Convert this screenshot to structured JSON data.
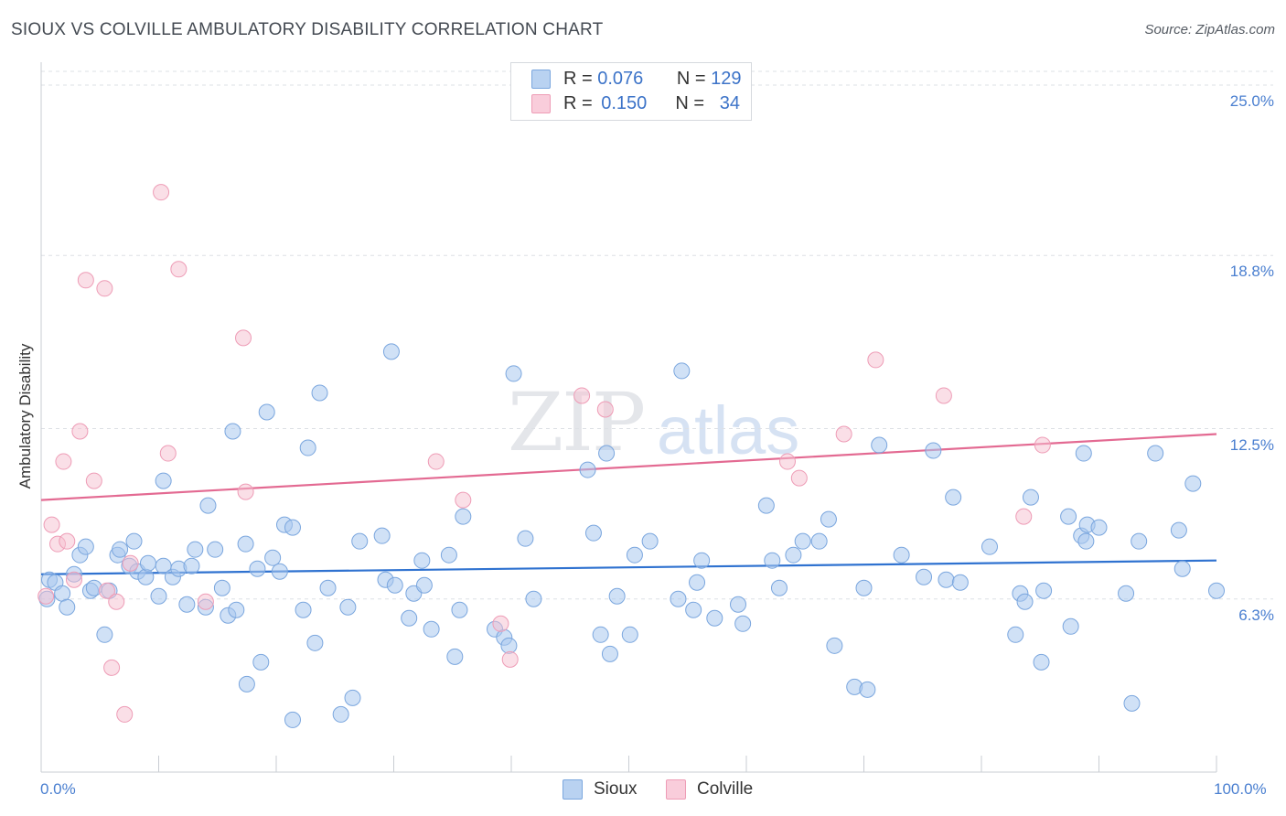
{
  "title": "SIOUX VS COLVILLE AMBULATORY DISABILITY CORRELATION CHART",
  "source": "Source: ZipAtlas.com",
  "watermark": {
    "part1": "ZIP",
    "part2": "atlas"
  },
  "legend_top": {
    "sioux": {
      "r_label": "R =",
      "r_value": "0.076",
      "n_label": "N =",
      "n_value": "129"
    },
    "colville": {
      "r_label": "R =",
      "r_value": "0.150",
      "n_label": "N =",
      "n_value": "34"
    }
  },
  "legend_bottom": {
    "sioux": "Sioux",
    "colville": "Colville"
  },
  "colors": {
    "sioux_fill": "#a9c8ee",
    "sioux_stroke": "#7aa6de",
    "sioux_line": "#2f72d0",
    "colville_fill": "#f6bfd0",
    "colville_stroke": "#ee9cb6",
    "colville_line": "#e36a92",
    "axis_label": "#4a7fd0",
    "grid": "#dde0e5"
  },
  "chart_data": {
    "type": "scatter",
    "title": "SIOUX VS COLVILLE AMBULATORY DISABILITY CORRELATION CHART",
    "xlabel": "",
    "ylabel": "Ambulatory Disability",
    "xlim": [
      0,
      100
    ],
    "ylim": [
      0,
      25.5
    ],
    "x_tick_labels": [
      "0.0%",
      "100.0%"
    ],
    "y_ticks": [
      6.3,
      12.5,
      18.8,
      25.0
    ],
    "y_tick_labels": [
      "6.3%",
      "12.5%",
      "18.8%",
      "25.0%"
    ],
    "series": [
      {
        "name": "Sioux",
        "r": 0.076,
        "n": 129,
        "trend": {
          "x": [
            0,
            100
          ],
          "y": [
            7.2,
            7.7
          ]
        },
        "points": [
          [
            0.5,
            6.3
          ],
          [
            0.7,
            7.0
          ],
          [
            1.2,
            6.9
          ],
          [
            1.8,
            6.5
          ],
          [
            2.2,
            6.0
          ],
          [
            2.8,
            7.2
          ],
          [
            3.3,
            7.9
          ],
          [
            3.8,
            8.2
          ],
          [
            4.2,
            6.6
          ],
          [
            4.5,
            6.7
          ],
          [
            5.4,
            5.0
          ],
          [
            5.8,
            6.6
          ],
          [
            6.5,
            7.9
          ],
          [
            6.7,
            8.1
          ],
          [
            7.5,
            7.5
          ],
          [
            7.9,
            8.4
          ],
          [
            8.2,
            7.3
          ],
          [
            8.9,
            7.1
          ],
          [
            9.1,
            7.6
          ],
          [
            10.0,
            6.4
          ],
          [
            10.4,
            10.6
          ],
          [
            10.4,
            7.5
          ],
          [
            11.2,
            7.1
          ],
          [
            11.7,
            7.4
          ],
          [
            12.4,
            6.1
          ],
          [
            12.8,
            7.5
          ],
          [
            13.1,
            8.1
          ],
          [
            14.0,
            6.0
          ],
          [
            14.2,
            9.7
          ],
          [
            14.8,
            8.1
          ],
          [
            15.4,
            6.7
          ],
          [
            15.9,
            5.7
          ],
          [
            16.3,
            12.4
          ],
          [
            16.6,
            5.9
          ],
          [
            17.4,
            8.3
          ],
          [
            17.5,
            3.2
          ],
          [
            18.4,
            7.4
          ],
          [
            18.7,
            4.0
          ],
          [
            19.2,
            13.1
          ],
          [
            19.7,
            7.8
          ],
          [
            20.3,
            7.3
          ],
          [
            20.7,
            9.0
          ],
          [
            21.4,
            8.9
          ],
          [
            21.4,
            1.9
          ],
          [
            22.3,
            5.9
          ],
          [
            22.7,
            11.8
          ],
          [
            23.3,
            4.7
          ],
          [
            23.7,
            13.8
          ],
          [
            24.4,
            6.7
          ],
          [
            25.5,
            2.1
          ],
          [
            26.1,
            6.0
          ],
          [
            26.5,
            2.7
          ],
          [
            27.1,
            8.4
          ],
          [
            29.0,
            8.6
          ],
          [
            29.3,
            7.0
          ],
          [
            29.8,
            15.3
          ],
          [
            30.1,
            6.8
          ],
          [
            31.3,
            5.6
          ],
          [
            31.7,
            6.5
          ],
          [
            32.4,
            7.7
          ],
          [
            32.6,
            6.8
          ],
          [
            33.2,
            5.2
          ],
          [
            34.7,
            7.9
          ],
          [
            35.2,
            4.2
          ],
          [
            35.6,
            5.9
          ],
          [
            35.9,
            9.3
          ],
          [
            38.6,
            5.2
          ],
          [
            39.4,
            4.9
          ],
          [
            39.8,
            4.6
          ],
          [
            40.2,
            14.5
          ],
          [
            41.2,
            8.5
          ],
          [
            41.9,
            6.3
          ],
          [
            46.5,
            11.0
          ],
          [
            47.0,
            8.7
          ],
          [
            47.6,
            5.0
          ],
          [
            48.1,
            11.6
          ],
          [
            48.4,
            4.3
          ],
          [
            49.0,
            6.4
          ],
          [
            50.1,
            5.0
          ],
          [
            50.5,
            7.9
          ],
          [
            51.8,
            8.4
          ],
          [
            54.2,
            6.3
          ],
          [
            54.5,
            14.6
          ],
          [
            55.5,
            5.9
          ],
          [
            55.8,
            6.9
          ],
          [
            56.2,
            7.7
          ],
          [
            57.3,
            5.6
          ],
          [
            59.3,
            6.1
          ],
          [
            59.7,
            5.4
          ],
          [
            61.7,
            9.7
          ],
          [
            62.2,
            7.7
          ],
          [
            62.8,
            6.7
          ],
          [
            64.0,
            7.9
          ],
          [
            64.8,
            8.4
          ],
          [
            66.2,
            8.4
          ],
          [
            67.0,
            9.2
          ],
          [
            67.5,
            4.6
          ],
          [
            69.2,
            3.1
          ],
          [
            70.0,
            6.7
          ],
          [
            70.3,
            3.0
          ],
          [
            71.3,
            11.9
          ],
          [
            73.2,
            7.9
          ],
          [
            75.1,
            7.1
          ],
          [
            75.9,
            11.7
          ],
          [
            77.0,
            7.0
          ],
          [
            77.6,
            10.0
          ],
          [
            78.2,
            6.9
          ],
          [
            80.7,
            8.2
          ],
          [
            82.9,
            5.0
          ],
          [
            83.3,
            6.5
          ],
          [
            83.7,
            6.2
          ],
          [
            84.2,
            10.0
          ],
          [
            85.1,
            4.0
          ],
          [
            85.3,
            6.6
          ],
          [
            87.4,
            9.3
          ],
          [
            87.6,
            5.3
          ],
          [
            88.5,
            8.6
          ],
          [
            88.7,
            11.6
          ],
          [
            88.9,
            8.4
          ],
          [
            89.0,
            9.0
          ],
          [
            90.0,
            8.9
          ],
          [
            92.3,
            6.5
          ],
          [
            92.8,
            2.5
          ],
          [
            93.4,
            8.4
          ],
          [
            94.8,
            11.6
          ],
          [
            96.8,
            8.8
          ],
          [
            97.1,
            7.4
          ],
          [
            98.0,
            10.5
          ],
          [
            100.0,
            6.6
          ]
        ]
      },
      {
        "name": "Colville",
        "r": 0.15,
        "n": 34,
        "trend": {
          "x": [
            0,
            100
          ],
          "y": [
            9.9,
            12.3
          ]
        },
        "points": [
          [
            0.4,
            6.4
          ],
          [
            0.9,
            9.0
          ],
          [
            1.4,
            8.3
          ],
          [
            1.9,
            11.3
          ],
          [
            2.2,
            8.4
          ],
          [
            2.8,
            7.0
          ],
          [
            3.3,
            12.4
          ],
          [
            3.8,
            17.9
          ],
          [
            4.5,
            10.6
          ],
          [
            5.4,
            17.6
          ],
          [
            5.6,
            6.6
          ],
          [
            6.0,
            3.8
          ],
          [
            6.4,
            6.2
          ],
          [
            7.1,
            2.1
          ],
          [
            7.6,
            7.6
          ],
          [
            10.2,
            21.1
          ],
          [
            10.8,
            11.6
          ],
          [
            11.7,
            18.3
          ],
          [
            14.0,
            6.2
          ],
          [
            17.2,
            15.8
          ],
          [
            17.4,
            10.2
          ],
          [
            33.6,
            11.3
          ],
          [
            35.9,
            9.9
          ],
          [
            39.1,
            5.4
          ],
          [
            39.9,
            4.1
          ],
          [
            46.0,
            13.7
          ],
          [
            48.0,
            13.2
          ],
          [
            63.5,
            11.3
          ],
          [
            64.5,
            10.7
          ],
          [
            68.3,
            12.3
          ],
          [
            71.0,
            15.0
          ],
          [
            76.8,
            13.7
          ],
          [
            83.6,
            9.3
          ],
          [
            85.2,
            11.9
          ]
        ]
      }
    ]
  }
}
